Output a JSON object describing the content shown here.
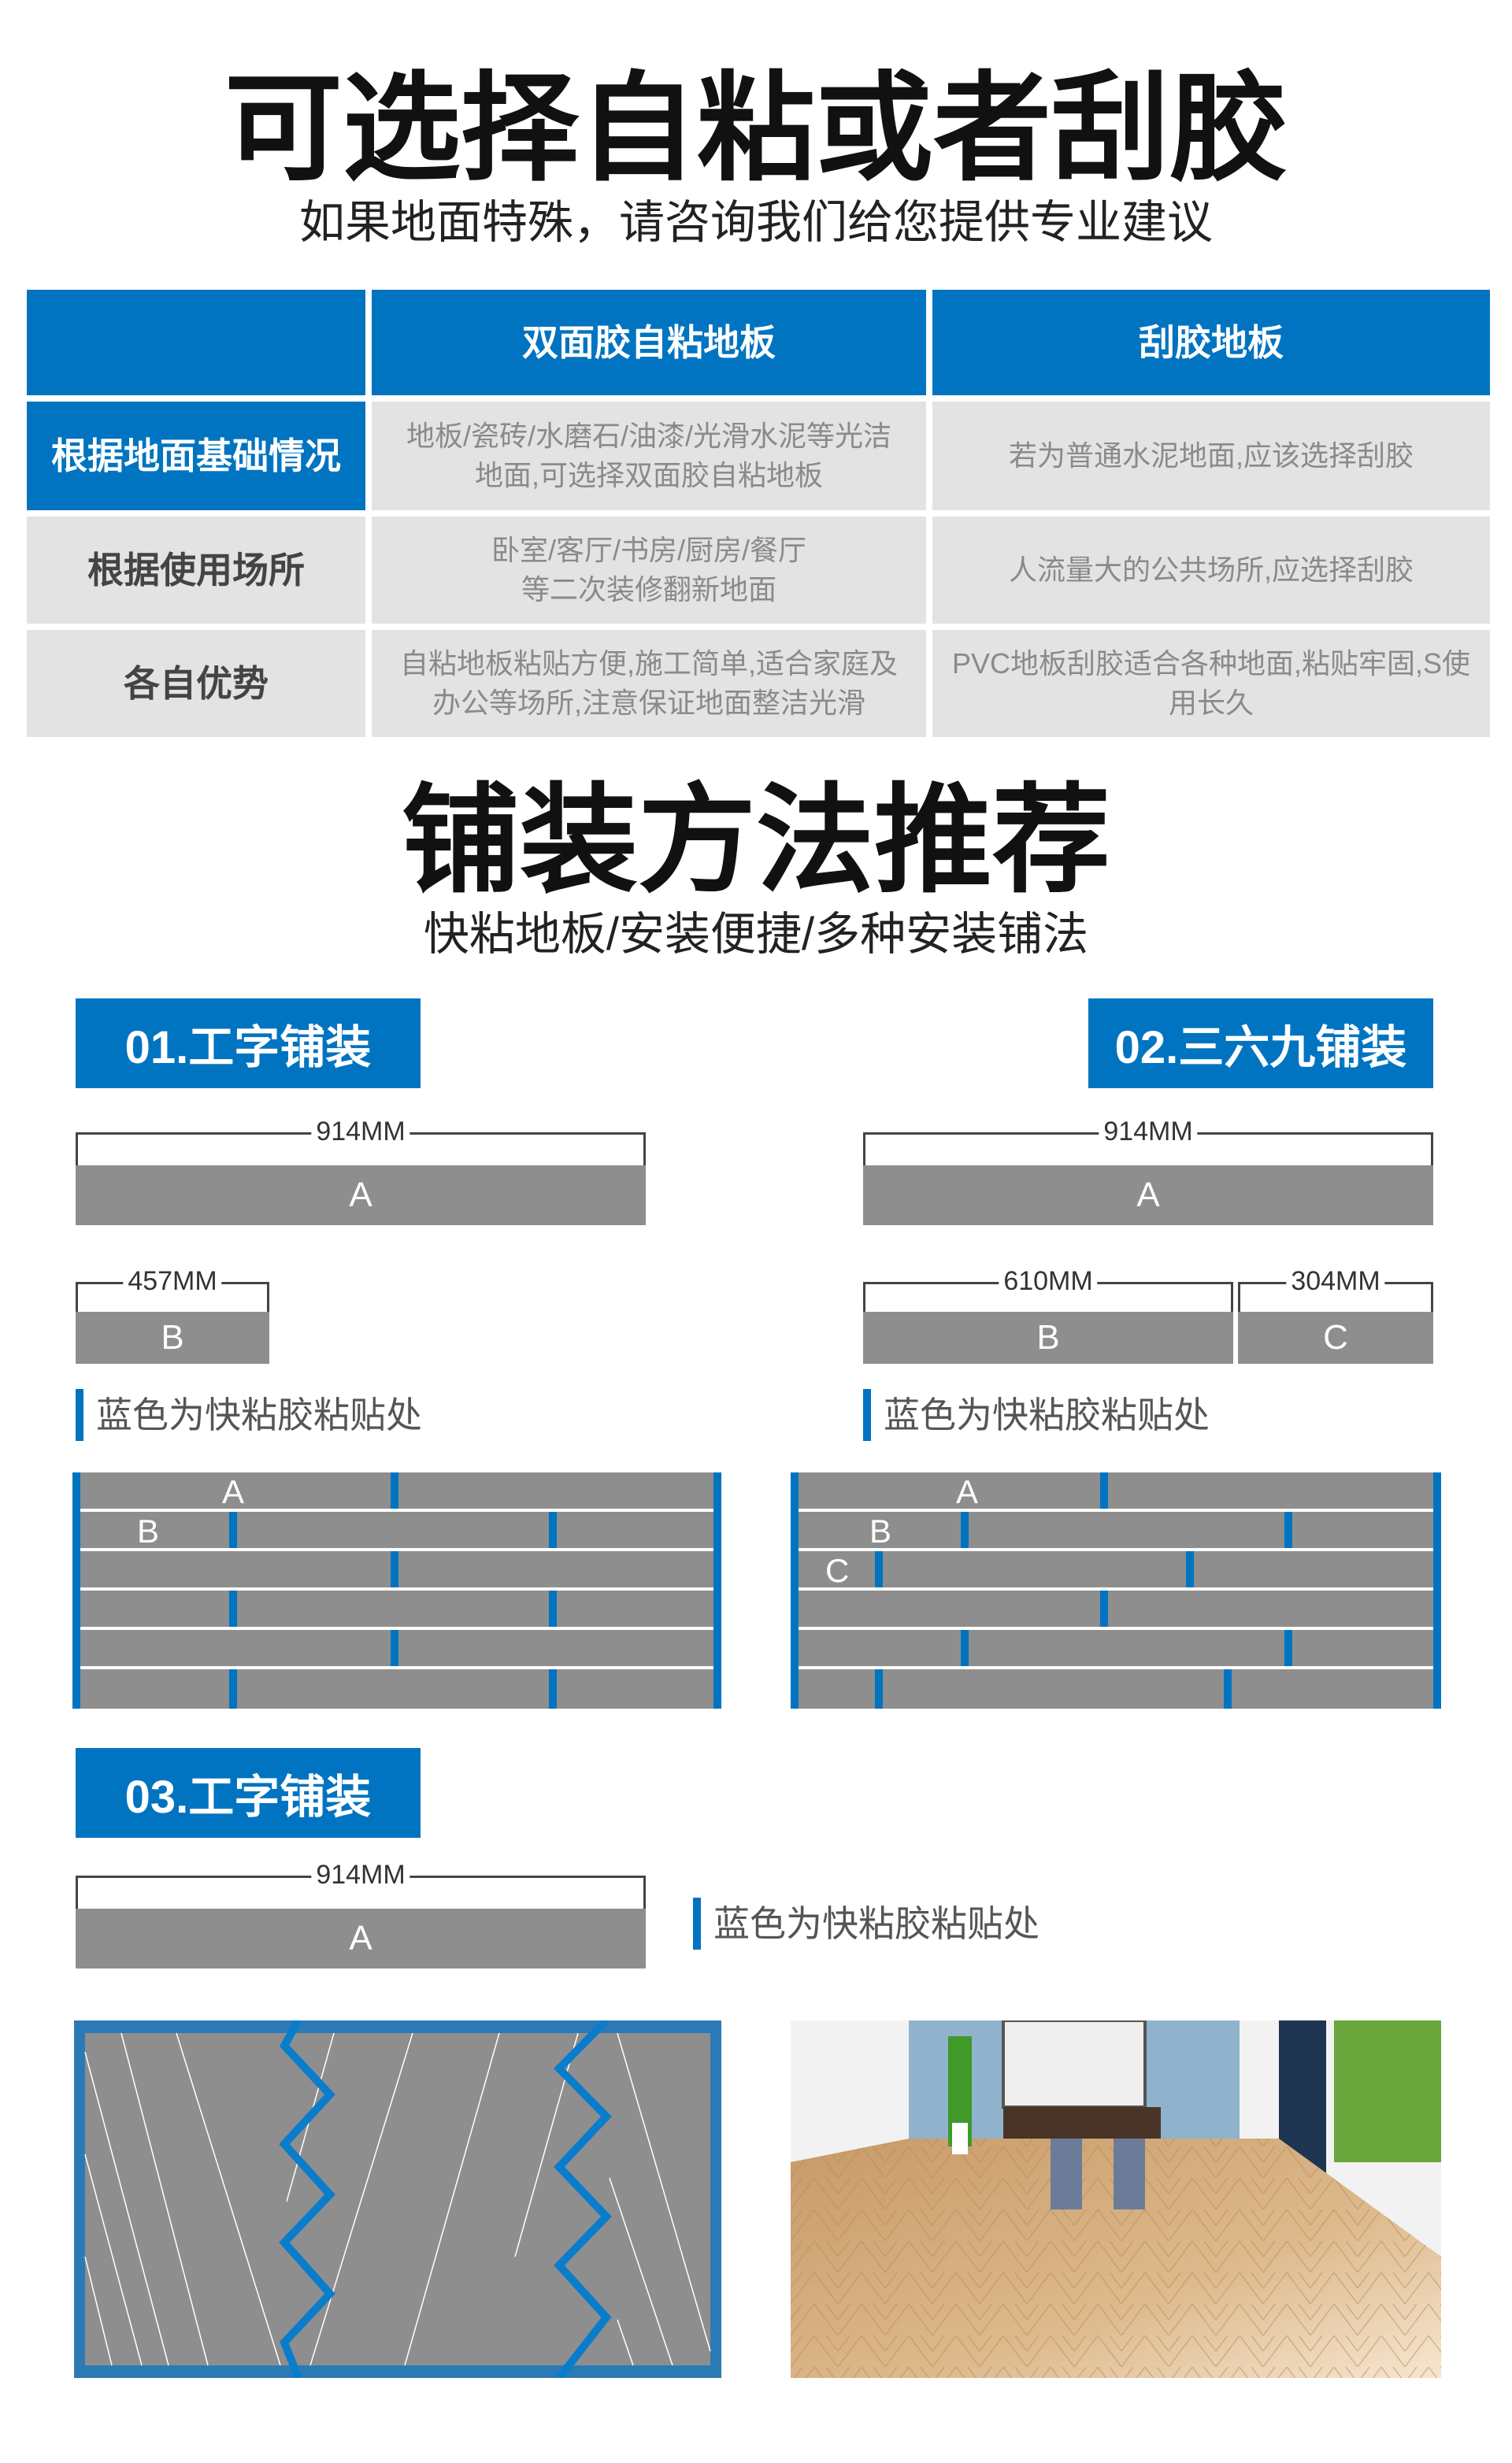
{
  "section1": {
    "title": "可选择自粘或者刮胶",
    "subtitle": "如果地面特殊，请咨询我们给您提供专业建议"
  },
  "table": {
    "headers": [
      "",
      "双面胶自粘地板",
      "刮胶地板"
    ],
    "rows": [
      {
        "label": "根据地面基础情况",
        "self_adhesive": "地板/瓷砖/水磨石/油漆/光滑水泥等光洁地面,可选择双面胶自粘地板",
        "glue": "若为普通水泥地面,应该选择刮胶"
      },
      {
        "label": "根据使用场所",
        "self_adhesive": "卧室/客厅/书房/厨房/餐厅等二次装修翻新地面",
        "glue": "人流量大的公共场所,应选择刮胶"
      },
      {
        "label": "各自优势",
        "self_adhesive": "自粘地板粘贴方便,施工简单,适合家庭及办公等场所,注意保证地面整洁光滑",
        "glue": "PVC地板刮胶适合各种地面,粘贴牢固,S使用长久"
      }
    ]
  },
  "section2": {
    "title": "铺装方法推荐",
    "subtitle": "快粘地板/安装便捷/多种安装铺法"
  },
  "method1": {
    "badge": "01.工字铺装",
    "a_dim": "914MM",
    "a_label": "A",
    "b_dim": "457MM",
    "b_label": "B",
    "legend": "蓝色为快粘胶粘贴处",
    "diagram_labels": [
      "A",
      "B"
    ]
  },
  "method2": {
    "badge": "02.三六九铺装",
    "a_dim": "914MM",
    "a_label": "A",
    "b_dim": "610MM",
    "b_label": "B",
    "c_dim": "304MM",
    "c_label": "C",
    "legend": "蓝色为快粘胶粘贴处",
    "diagram_labels": [
      "A",
      "B",
      "C"
    ]
  },
  "method3": {
    "badge": "03.工字铺装",
    "a_dim": "914MM",
    "a_label": "A",
    "legend": "蓝色为快粘胶粘贴处"
  },
  "colors": {
    "accent": "#0074c1",
    "plank": "#8e8e8e",
    "cell": "#e3e3e3"
  }
}
